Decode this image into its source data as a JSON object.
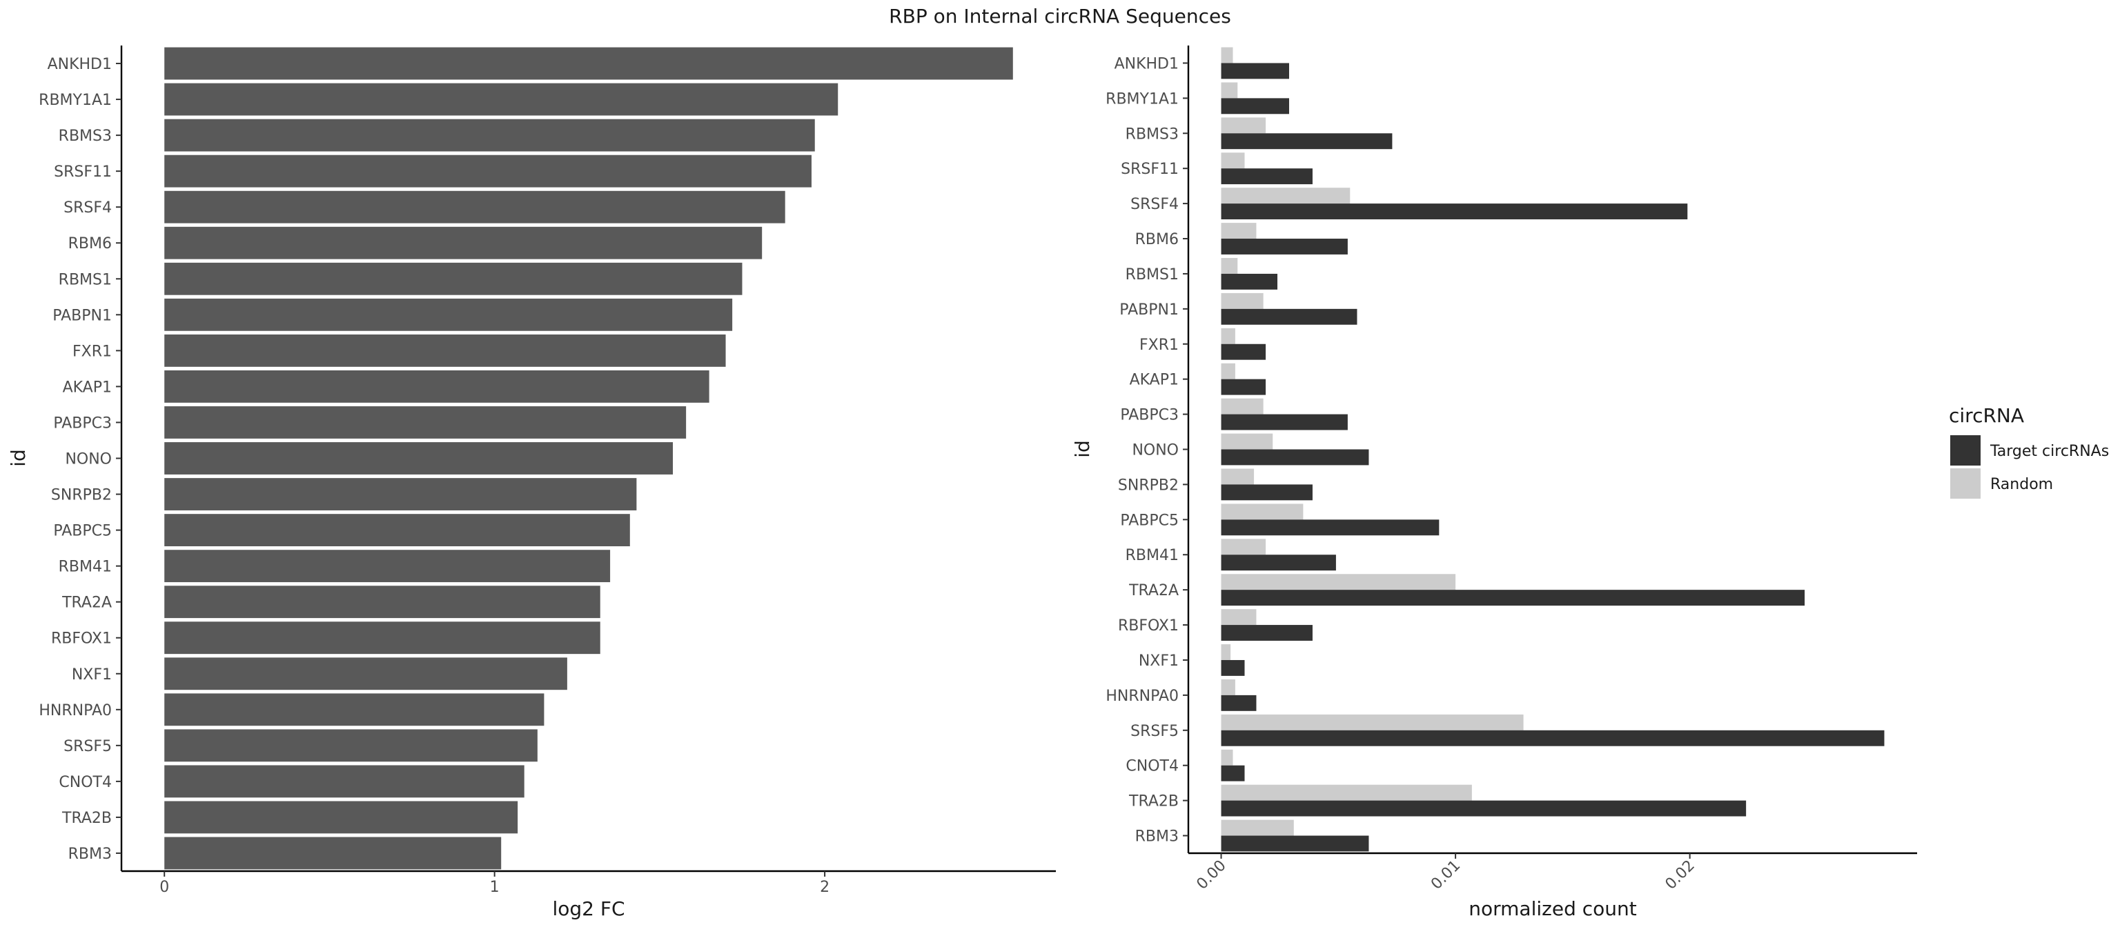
{
  "figure": {
    "title": "RBP on Internal circRNA Sequences"
  },
  "chart_data": [
    {
      "type": "bar",
      "orientation": "horizontal",
      "categories": [
        "ANKHD1",
        "RBMY1A1",
        "RBMS3",
        "SRSF11",
        "SRSF4",
        "RBM6",
        "RBMS1",
        "PABPN1",
        "FXR1",
        "AKAP1",
        "PABPC3",
        "NONO",
        "SNRPB2",
        "PABPC5",
        "RBM41",
        "TRA2A",
        "RBFOX1",
        "NXF1",
        "HNRNPA0",
        "SRSF5",
        "CNOT4",
        "TRA2B",
        "RBM3"
      ],
      "values": [
        2.57,
        2.04,
        1.97,
        1.96,
        1.88,
        1.81,
        1.75,
        1.72,
        1.7,
        1.65,
        1.58,
        1.54,
        1.43,
        1.41,
        1.35,
        1.32,
        1.32,
        1.22,
        1.15,
        1.13,
        1.09,
        1.07,
        1.02
      ],
      "xlabel": "log2 FC",
      "ylabel": "id",
      "xticks": [
        "0",
        "1",
        "2"
      ],
      "xlim": [
        -0.13,
        2.7
      ],
      "bar_color": "#595959",
      "grid": false
    },
    {
      "type": "bar",
      "orientation": "horizontal",
      "grouped": true,
      "categories": [
        "ANKHD1",
        "RBMY1A1",
        "RBMS3",
        "SRSF11",
        "SRSF4",
        "RBM6",
        "RBMS1",
        "PABPN1",
        "FXR1",
        "AKAP1",
        "PABPC3",
        "NONO",
        "SNRPB2",
        "PABPC5",
        "RBM41",
        "TRA2A",
        "RBFOX1",
        "NXF1",
        "HNRNPA0",
        "SRSF5",
        "CNOT4",
        "TRA2B",
        "RBM3"
      ],
      "series": [
        {
          "name": "Target circRNAs",
          "color": "#333333",
          "values": [
            0.0029,
            0.0029,
            0.0073,
            0.0039,
            0.0199,
            0.0054,
            0.0024,
            0.0058,
            0.0019,
            0.0019,
            0.0054,
            0.0063,
            0.0039,
            0.0093,
            0.0049,
            0.0249,
            0.0039,
            0.001,
            0.0015,
            0.0283,
            0.001,
            0.0224,
            0.0063
          ]
        },
        {
          "name": "Random",
          "color": "#cccccc",
          "values": [
            0.0005,
            0.0007,
            0.0019,
            0.001,
            0.0055,
            0.0015,
            0.0007,
            0.0018,
            0.0006,
            0.0006,
            0.0018,
            0.0022,
            0.0014,
            0.0035,
            0.0019,
            0.01,
            0.0015,
            0.0004,
            0.0006,
            0.0129,
            0.0005,
            0.0107,
            0.0031
          ]
        }
      ],
      "xlabel": "normalized count",
      "ylabel": "id",
      "xticks": [
        "0.00",
        "0.01",
        "0.02"
      ],
      "xlim": [
        -0.0014,
        0.0297
      ],
      "grid": false,
      "legend": {
        "title": "circRNA",
        "position": "right"
      }
    }
  ]
}
